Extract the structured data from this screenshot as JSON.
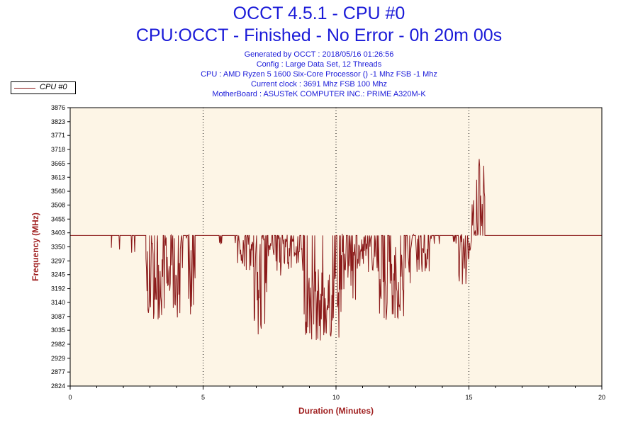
{
  "header": {
    "title": "OCCT 4.5.1 - CPU #0",
    "subtitle": "CPU:OCCT - Finished - No Error - 0h 20m 00s",
    "info_lines": [
      "Generated by OCCT : 2018/05/16 01:26:56",
      "Config : Large Data Set, 12 Threads",
      "CPU : AMD Ryzen 5 1600 Six-Core Processor () -1 Mhz FSB -1 Mhz",
      "Current clock : 3691 Mhz FSB 100 Mhz",
      "MotherBoard : ASUSTeK COMPUTER INC.: PRIME A320M-K"
    ]
  },
  "colors": {
    "title": "#1a1ad8",
    "series": "#8b1a1a",
    "axis_title": "#a02020",
    "plot_background": "#fdf5e6"
  },
  "chart_data": {
    "type": "line",
    "xlabel": "Duration (Minutes)",
    "ylabel": "Frequency (MHz)",
    "xlim": [
      0,
      20
    ],
    "ylim": [
      2824,
      3876
    ],
    "x_ticks": [
      "0",
      "5",
      "10",
      "15",
      "20"
    ],
    "y_ticks": [
      "2824",
      "2877",
      "2929",
      "2982",
      "3035",
      "3087",
      "3140",
      "3192",
      "3245",
      "3297",
      "3350",
      "3403",
      "3455",
      "3508",
      "3560",
      "3613",
      "3665",
      "3718",
      "3771",
      "3823",
      "3876"
    ],
    "grid": "dotted vertical lines at major x ticks",
    "legend_position": "top-left",
    "series": [
      {
        "name": "CPU #0",
        "baseline": 3393,
        "segments": [
          {
            "x": [
              0,
              1.55
            ],
            "pattern": "flat"
          },
          {
            "x": [
              1.55,
              2.85
            ],
            "pattern": "sparse-dips",
            "min": 3320,
            "max": 3393
          },
          {
            "x": [
              2.85,
              4.7
            ],
            "pattern": "noisy",
            "min": 3075,
            "max": 3400
          },
          {
            "x": [
              4.7,
              5.6
            ],
            "pattern": "flat"
          },
          {
            "x": [
              5.6,
              6.3
            ],
            "pattern": "sparse-dips",
            "min": 3360,
            "max": 3393
          },
          {
            "x": [
              6.3,
              6.9
            ],
            "pattern": "noisy",
            "min": 3260,
            "max": 3400
          },
          {
            "x": [
              6.9,
              7.4
            ],
            "pattern": "noisy",
            "min": 2975,
            "max": 3400
          },
          {
            "x": [
              7.4,
              8.8
            ],
            "pattern": "noisy",
            "min": 3240,
            "max": 3400
          },
          {
            "x": [
              8.8,
              9.5
            ],
            "pattern": "noisy",
            "min": 2990,
            "max": 3270
          },
          {
            "x": [
              9.5,
              10.2
            ],
            "pattern": "noisy",
            "min": 3005,
            "max": 3250
          },
          {
            "x": [
              10.2,
              10.8
            ],
            "pattern": "noisy",
            "min": 3150,
            "max": 3400
          },
          {
            "x": [
              10.8,
              11.6
            ],
            "pattern": "noisy",
            "min": 3250,
            "max": 3400
          },
          {
            "x": [
              11.6,
              12.2
            ],
            "pattern": "noisy",
            "min": 3060,
            "max": 3300
          },
          {
            "x": [
              12.2,
              12.8
            ],
            "pattern": "noisy",
            "min": 3080,
            "max": 3360
          },
          {
            "x": [
              12.8,
              13.6
            ],
            "pattern": "noisy",
            "min": 3250,
            "max": 3400
          },
          {
            "x": [
              13.6,
              14.6
            ],
            "pattern": "sparse-dips",
            "min": 3360,
            "max": 3393
          },
          {
            "x": [
              14.6,
              15.1
            ],
            "pattern": "noisy",
            "min": 3200,
            "max": 3400
          },
          {
            "x": [
              15.1,
              15.6
            ],
            "pattern": "noisy",
            "min": 3380,
            "max": 3700
          },
          {
            "x": [
              15.6,
              20
            ],
            "pattern": "flat"
          }
        ]
      }
    ]
  }
}
